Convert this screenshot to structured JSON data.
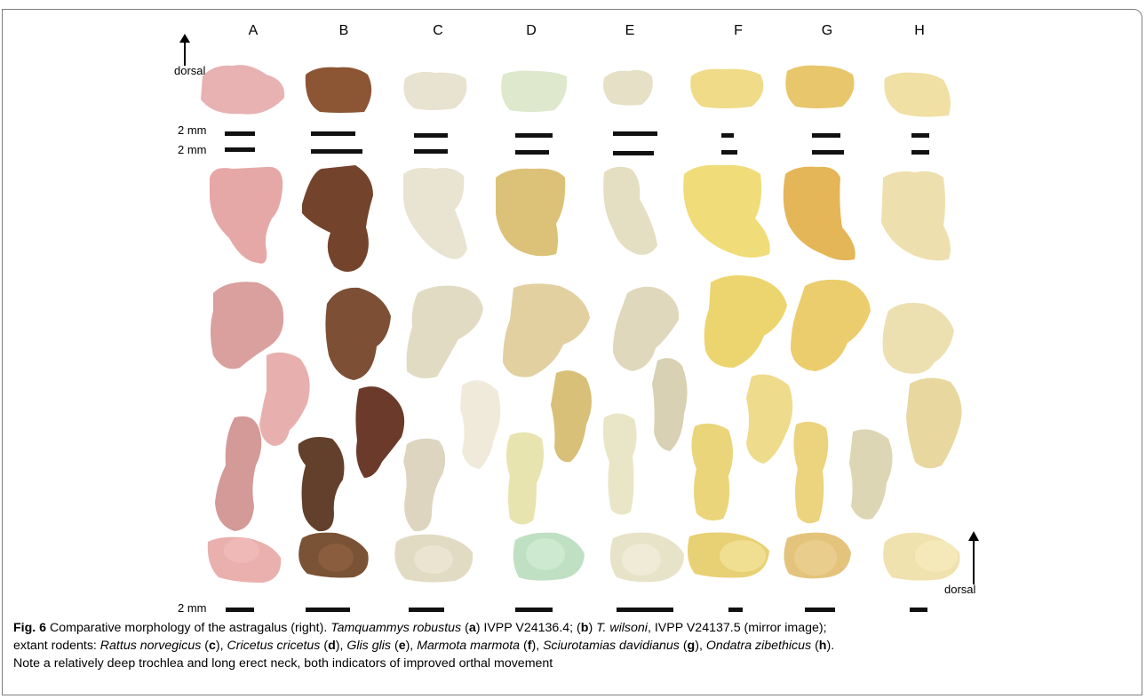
{
  "figure": {
    "column_labels": [
      "A",
      "B",
      "C",
      "D",
      "E",
      "F",
      "G",
      "H"
    ],
    "orientation_label_top": "dorsal",
    "orientation_label_bottom": "dorsal",
    "scale_label_1": "2 mm",
    "scale_label_2": "2 mm",
    "scale_label_3": "2 mm"
  },
  "caption": {
    "fig_label": "Fig. 6",
    "t1": " Comparative morphology of the astragalus (right). ",
    "sp_a": "Tamquammys robustus",
    "t2": " (",
    "l_a": "a",
    "t3": ") IVPP V24136.4; (",
    "l_b": "b",
    "t4": ") ",
    "sp_b": "T. wilsoni",
    "t5": ", IVPP V24137.5 (mirror image);",
    "t6": "extant rodents: ",
    "sp_c": "Rattus norvegicus",
    "l_c": "c",
    "sp_d": "Cricetus cricetus",
    "l_d": "d",
    "sp_e": "Glis glis",
    "l_e": "e",
    "sp_f": "Marmota marmota",
    "l_f": "f",
    "sp_g": "Sciurotamias davidianus",
    "l_g": "g",
    "sp_h": "Ondatra zibethicus",
    "l_h": "h",
    "open": " (",
    "close_comma": "), ",
    "close_end": ").",
    "line3": "Note a relatively deep trochlea and long erect neck, both indicators of improved orthal movement"
  },
  "colors": {
    "A": "#e3aaa8",
    "B": "#7a4a2e",
    "C": "#e6e0cc",
    "D": "#e6d49a",
    "E": "#e2dcbc",
    "F": "#ecd779",
    "G": "#e6c068",
    "H": "#eee1ad"
  }
}
